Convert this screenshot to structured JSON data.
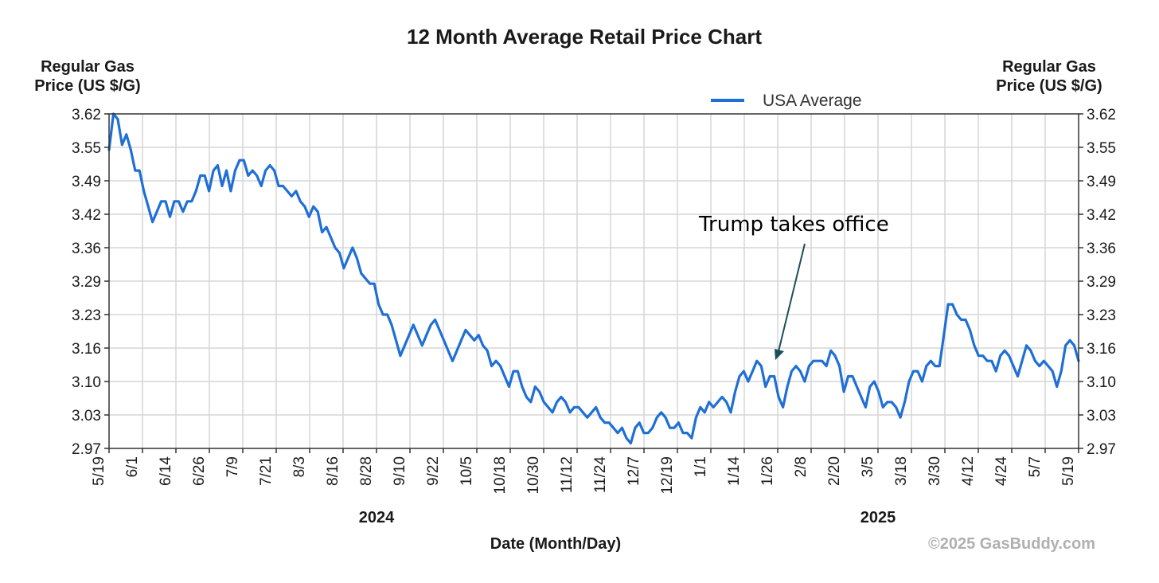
{
  "chart_data": {
    "type": "line",
    "title": "12 Month Average Retail Price Chart",
    "ylabel_left": [
      "Regular Gas",
      "Price (US $/G)"
    ],
    "ylabel_right": [
      "Regular Gas",
      "Price (US $/G)"
    ],
    "xlabel": "Date (Month/Day)",
    "ylim": [
      2.97,
      3.62
    ],
    "y_ticks": [
      "3.62",
      "3.55",
      "3.49",
      "3.42",
      "3.36",
      "3.29",
      "3.23",
      "3.16",
      "3.10",
      "3.03",
      "2.97"
    ],
    "x_ticks": [
      "5/19",
      "6/1",
      "6/14",
      "6/26",
      "7/9",
      "7/21",
      "8/3",
      "8/16",
      "8/28",
      "9/10",
      "9/22",
      "10/5",
      "10/18",
      "10/30",
      "11/12",
      "11/24",
      "12/7",
      "12/19",
      "1/1",
      "1/14",
      "1/26",
      "2/8",
      "2/20",
      "3/5",
      "3/18",
      "3/30",
      "4/12",
      "4/24",
      "5/7",
      "5/19"
    ],
    "year_labels": [
      {
        "label": "2024",
        "x_tick": "8/28"
      },
      {
        "label": "2025",
        "x_tick": "3/5"
      }
    ],
    "grid": true,
    "legend": {
      "position": "top-right",
      "entries": [
        {
          "name": "USA Average",
          "color": "#1f6fd6"
        }
      ]
    },
    "annotation": {
      "text": "Trump takes office",
      "points_to_tick": "1/26",
      "value": 3.13
    },
    "credit": "©2025 GasBuddy.com",
    "series": [
      {
        "name": "USA Average",
        "color": "#1f6fd6",
        "x_start": "5/19",
        "x_end": "5/19",
        "values": [
          3.55,
          3.62,
          3.61,
          3.56,
          3.58,
          3.55,
          3.51,
          3.51,
          3.47,
          3.44,
          3.41,
          3.43,
          3.45,
          3.45,
          3.42,
          3.45,
          3.45,
          3.43,
          3.45,
          3.45,
          3.47,
          3.5,
          3.5,
          3.47,
          3.51,
          3.52,
          3.48,
          3.51,
          3.47,
          3.51,
          3.53,
          3.53,
          3.5,
          3.51,
          3.5,
          3.48,
          3.51,
          3.52,
          3.51,
          3.48,
          3.48,
          3.47,
          3.46,
          3.47,
          3.45,
          3.44,
          3.42,
          3.44,
          3.43,
          3.39,
          3.4,
          3.38,
          3.36,
          3.35,
          3.32,
          3.34,
          3.36,
          3.34,
          3.31,
          3.3,
          3.29,
          3.29,
          3.25,
          3.23,
          3.23,
          3.21,
          3.18,
          3.15,
          3.17,
          3.19,
          3.21,
          3.19,
          3.17,
          3.19,
          3.21,
          3.22,
          3.2,
          3.18,
          3.16,
          3.14,
          3.16,
          3.18,
          3.2,
          3.19,
          3.18,
          3.19,
          3.17,
          3.16,
          3.13,
          3.14,
          3.13,
          3.11,
          3.09,
          3.12,
          3.12,
          3.09,
          3.07,
          3.06,
          3.09,
          3.08,
          3.06,
          3.05,
          3.04,
          3.06,
          3.07,
          3.06,
          3.04,
          3.05,
          3.05,
          3.04,
          3.03,
          3.04,
          3.05,
          3.03,
          3.02,
          3.02,
          3.01,
          3.0,
          3.01,
          2.99,
          2.98,
          3.01,
          3.02,
          3.0,
          3.0,
          3.01,
          3.03,
          3.04,
          3.03,
          3.01,
          3.01,
          3.02,
          3.0,
          3.0,
          2.99,
          3.03,
          3.05,
          3.04,
          3.06,
          3.05,
          3.06,
          3.07,
          3.06,
          3.04,
          3.08,
          3.11,
          3.12,
          3.1,
          3.12,
          3.14,
          3.13,
          3.09,
          3.11,
          3.11,
          3.07,
          3.05,
          3.09,
          3.12,
          3.13,
          3.12,
          3.1,
          3.13,
          3.14,
          3.14,
          3.14,
          3.13,
          3.16,
          3.15,
          3.13,
          3.08,
          3.11,
          3.11,
          3.09,
          3.07,
          3.05,
          3.09,
          3.1,
          3.08,
          3.05,
          3.06,
          3.06,
          3.05,
          3.03,
          3.06,
          3.1,
          3.12,
          3.12,
          3.1,
          3.13,
          3.14,
          3.13,
          3.13,
          3.19,
          3.25,
          3.25,
          3.23,
          3.22,
          3.22,
          3.2,
          3.17,
          3.15,
          3.15,
          3.14,
          3.14,
          3.12,
          3.15,
          3.16,
          3.15,
          3.13,
          3.11,
          3.14,
          3.17,
          3.16,
          3.14,
          3.13,
          3.14,
          3.13,
          3.12,
          3.09,
          3.12,
          3.17,
          3.18,
          3.17,
          3.14
        ]
      }
    ]
  }
}
